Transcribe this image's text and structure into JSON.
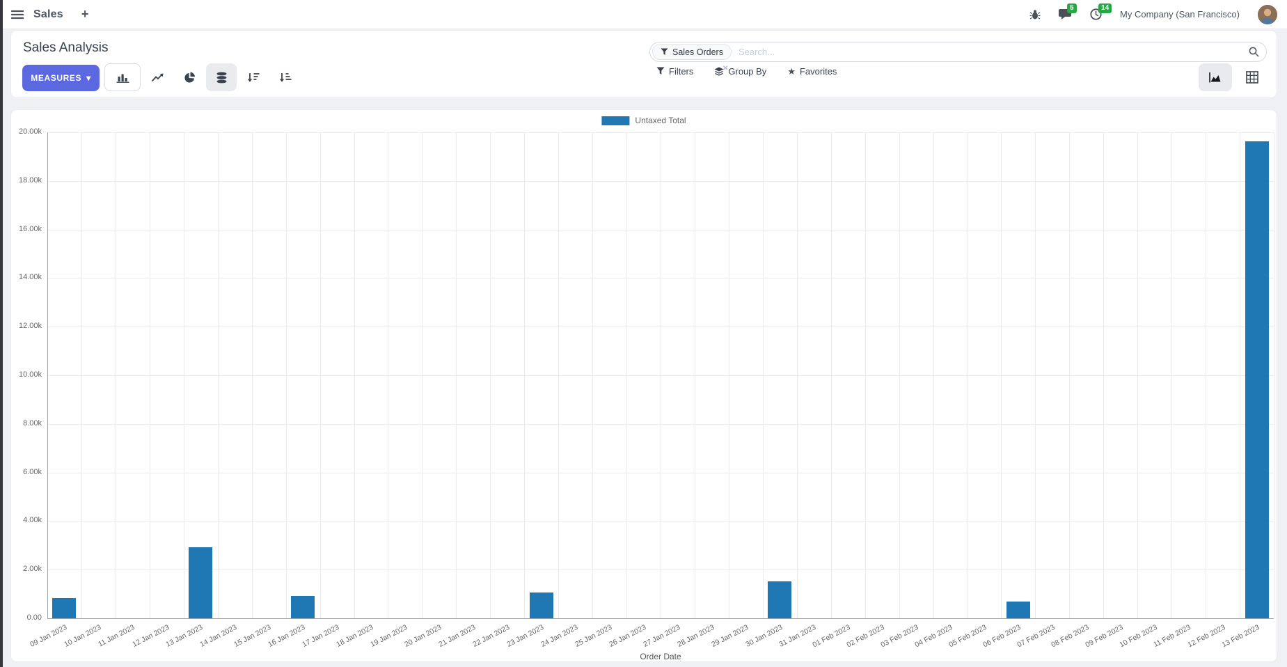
{
  "navbar": {
    "app_name": "Sales",
    "messages_badge": "5",
    "activities_badge": "14",
    "company": "My Company (San Francisco)"
  },
  "control_panel": {
    "title": "Sales Analysis",
    "measures_label": "MEASURES",
    "search": {
      "facet": "Sales Orders",
      "placeholder": "Search..."
    },
    "filters_label": "Filters",
    "groupby_label": "Group By",
    "favorites_label": "Favorites"
  },
  "icons": {
    "plus": "+",
    "caret_down": "▾",
    "close": "×",
    "star": "★"
  },
  "colors": {
    "accent": "#5b68e0",
    "bar_blue": "#1f77b4",
    "badge_green": "#28a745"
  },
  "chart_data": {
    "type": "bar",
    "title": "",
    "legend": [
      "Untaxed Total"
    ],
    "xlabel": "Order Date",
    "ylabel": "",
    "ylim": [
      0,
      20000
    ],
    "ytick_step": 2000,
    "yticks": [
      "0.00",
      "2.00k",
      "4.00k",
      "6.00k",
      "8.00k",
      "10.00k",
      "12.00k",
      "14.00k",
      "16.00k",
      "18.00k",
      "20.00k"
    ],
    "grid": true,
    "legend_position": "top",
    "categories": [
      "09 Jan 2023",
      "10 Jan 2023",
      "11 Jan 2023",
      "12 Jan 2023",
      "13 Jan 2023",
      "14 Jan 2023",
      "15 Jan 2023",
      "16 Jan 2023",
      "17 Jan 2023",
      "18 Jan 2023",
      "19 Jan 2023",
      "20 Jan 2023",
      "21 Jan 2023",
      "22 Jan 2023",
      "23 Jan 2023",
      "24 Jan 2023",
      "25 Jan 2023",
      "26 Jan 2023",
      "27 Jan 2023",
      "28 Jan 2023",
      "29 Jan 2023",
      "30 Jan 2023",
      "31 Jan 2023",
      "01 Feb 2023",
      "02 Feb 2023",
      "03 Feb 2023",
      "04 Feb 2023",
      "05 Feb 2023",
      "06 Feb 2023",
      "07 Feb 2023",
      "08 Feb 2023",
      "09 Feb 2023",
      "10 Feb 2023",
      "11 Feb 2023",
      "12 Feb 2023",
      "13 Feb 2023"
    ],
    "series": [
      {
        "name": "Untaxed Total",
        "color": "#1f77b4",
        "values": [
          820,
          0,
          0,
          0,
          2930,
          0,
          0,
          930,
          0,
          0,
          0,
          0,
          0,
          0,
          1070,
          0,
          0,
          0,
          0,
          0,
          0,
          1520,
          0,
          0,
          0,
          0,
          0,
          0,
          690,
          0,
          0,
          0,
          0,
          0,
          0,
          19640
        ]
      }
    ]
  }
}
